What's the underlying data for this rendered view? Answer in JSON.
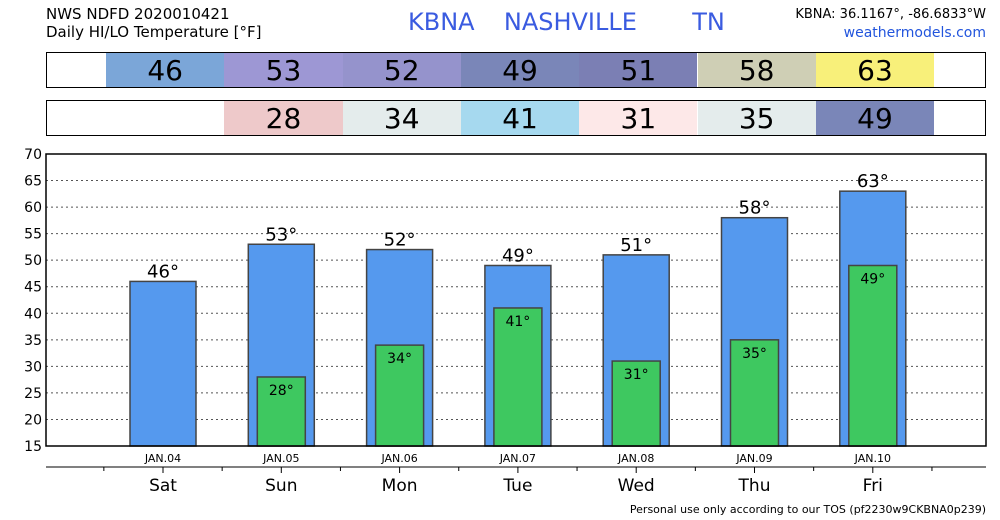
{
  "header": {
    "line1": "NWS NDFD 2020010421",
    "line2": "Daily HI/LO Temperature [°F]",
    "station": "KBNA",
    "city": "NASHVILLE",
    "state": "TN",
    "coords": "KBNA: 36.1167°, -86.6833°W",
    "site": "weathermodels.com"
  },
  "footer": "Personal use only according to our TOS (pf2230w9CKBNA0p239)",
  "hi_strip": [
    {
      "value": "46",
      "color": "#7ba6d8"
    },
    {
      "value": "53",
      "color": "#9d97d4"
    },
    {
      "value": "52",
      "color": "#9593cc"
    },
    {
      "value": "49",
      "color": "#7a86b8"
    },
    {
      "value": "51",
      "color": "#7b7fb4"
    },
    {
      "value": "58",
      "color": "#cfcfb5"
    },
    {
      "value": "63",
      "color": "#f8f07a"
    }
  ],
  "lo_strip": [
    {
      "value": "28",
      "color": "#eec9ca"
    },
    {
      "value": "34",
      "color": "#e4ecec"
    },
    {
      "value": "41",
      "color": "#a6d9ef"
    },
    {
      "value": "31",
      "color": "#fde8e8"
    },
    {
      "value": "35",
      "color": "#e4ecec"
    },
    {
      "value": "49",
      "color": "#7a86b8"
    }
  ],
  "chart_data": {
    "type": "bar",
    "categories": [
      "Sat",
      "Sun",
      "Mon",
      "Tue",
      "Wed",
      "Thu",
      "Fri"
    ],
    "dates": [
      "JAN.04",
      "JAN.05",
      "JAN.06",
      "JAN.07",
      "JAN.08",
      "JAN.09",
      "JAN.10"
    ],
    "series": [
      {
        "values": [
          46,
          53,
          52,
          49,
          51,
          58,
          63
        ],
        "color": "#5599ee"
      },
      {
        "values": [
          null,
          28,
          34,
          41,
          31,
          35,
          49
        ],
        "color": "#3ec860"
      }
    ],
    "hi_labels": [
      "46°",
      "53°",
      "52°",
      "49°",
      "51°",
      "58°",
      "63°"
    ],
    "lo_labels": [
      "",
      "28°",
      "34°",
      "41°",
      "31°",
      "35°",
      "49°"
    ],
    "ylim": [
      15,
      70
    ],
    "yticks": [
      "15",
      "20",
      "25",
      "30",
      "35",
      "40",
      "45",
      "50",
      "55",
      "60",
      "65",
      "70"
    ],
    "grid": true
  }
}
